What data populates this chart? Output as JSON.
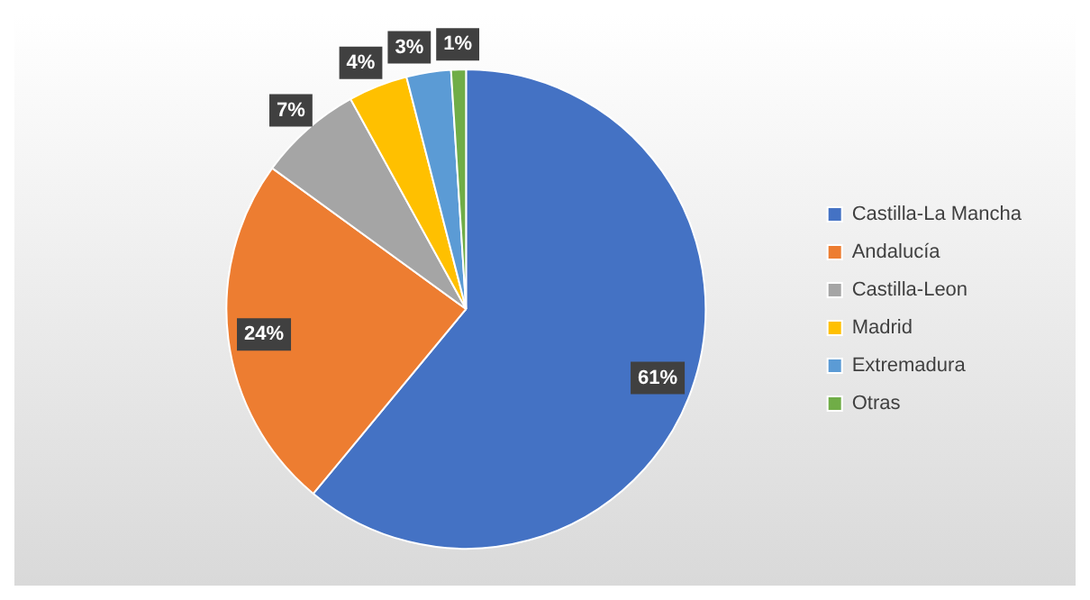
{
  "chart_data": {
    "type": "pie",
    "categories": [
      "Castilla-La Mancha",
      "Andalucía",
      "Castilla-Leon",
      "Madrid",
      "Extremadura",
      "Otras"
    ],
    "values": [
      61,
      24,
      7,
      4,
      3,
      1
    ],
    "colors": [
      "#4472c4",
      "#ed7d31",
      "#a5a5a5",
      "#ffc000",
      "#5b9bd5",
      "#70ad47"
    ],
    "value_labels": [
      "61%",
      "24%",
      "7%",
      "4%",
      "3%",
      "1%"
    ],
    "legend": "right"
  }
}
